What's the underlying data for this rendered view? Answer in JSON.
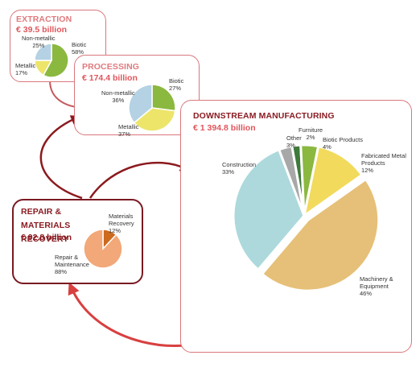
{
  "colors": {
    "title_red": "#e07a7e",
    "title_dark": "#8a1c22",
    "value_red": "#e0565c",
    "border_light": "#d9777c",
    "border_dark": "#7a1a22",
    "arrow_dark": "#8b1a1e",
    "arrow_light": "#d84040"
  },
  "chart_data": [
    {
      "type": "pie",
      "title": "EXTRACTION",
      "subtitle": "€ 39.5 billion",
      "slices": [
        {
          "name": "Biotic",
          "pct_label": "58%",
          "value": 58,
          "color": "#8bb83f"
        },
        {
          "name": "Metallic",
          "pct_label": "17%",
          "value": 17,
          "color": "#ece56a"
        },
        {
          "name": "Non-metallic",
          "pct_label": "25%",
          "value": 25,
          "color": "#b4d2e4"
        }
      ]
    },
    {
      "type": "pie",
      "title": "PROCESSING",
      "subtitle": "€ 174.4 billion",
      "slices": [
        {
          "name": "Biotic",
          "pct_label": "27%",
          "value": 27,
          "color": "#8bb83f"
        },
        {
          "name": "Metallic",
          "pct_label": "37%",
          "value": 37,
          "color": "#ece56a"
        },
        {
          "name": "Non-metallic",
          "pct_label": "36%",
          "value": 36,
          "color": "#b4d2e4"
        }
      ]
    },
    {
      "type": "pie",
      "title": "DOWNSTREAM MANUFACTURING",
      "subtitle": "€ 1 394.8 billion",
      "slices": [
        {
          "name": "Furniture",
          "pct_label": "2%",
          "value": 2,
          "color": "#3e7a3a"
        },
        {
          "name": "Biotic Products",
          "pct_label": "4%",
          "value": 4,
          "color": "#8bb83f"
        },
        {
          "name": "Fabricated Metal Products",
          "pct_label": "12%",
          "value": 12,
          "color": "#f2da5c"
        },
        {
          "name": "Machinery & Equipment",
          "pct_label": "46%",
          "value": 46,
          "color": "#e6c078",
          "exploded": true
        },
        {
          "name": "Construction",
          "pct_label": "33%",
          "value": 33,
          "color": "#add9dc"
        },
        {
          "name": "Other",
          "pct_label": "3%",
          "value": 3,
          "color": "#a8a8a8"
        }
      ]
    },
    {
      "type": "pie",
      "title": "REPAIR & MATERIALS RECOVERY",
      "subtitle": "€ 92.8 billion",
      "slices": [
        {
          "name": "Materials Recovery",
          "pct_label": "12%",
          "value": 12,
          "color": "#cc6a1e"
        },
        {
          "name": "Repair & Maintenance",
          "pct_label": "88%",
          "value": 88,
          "color": "#f2a878"
        }
      ]
    }
  ]
}
